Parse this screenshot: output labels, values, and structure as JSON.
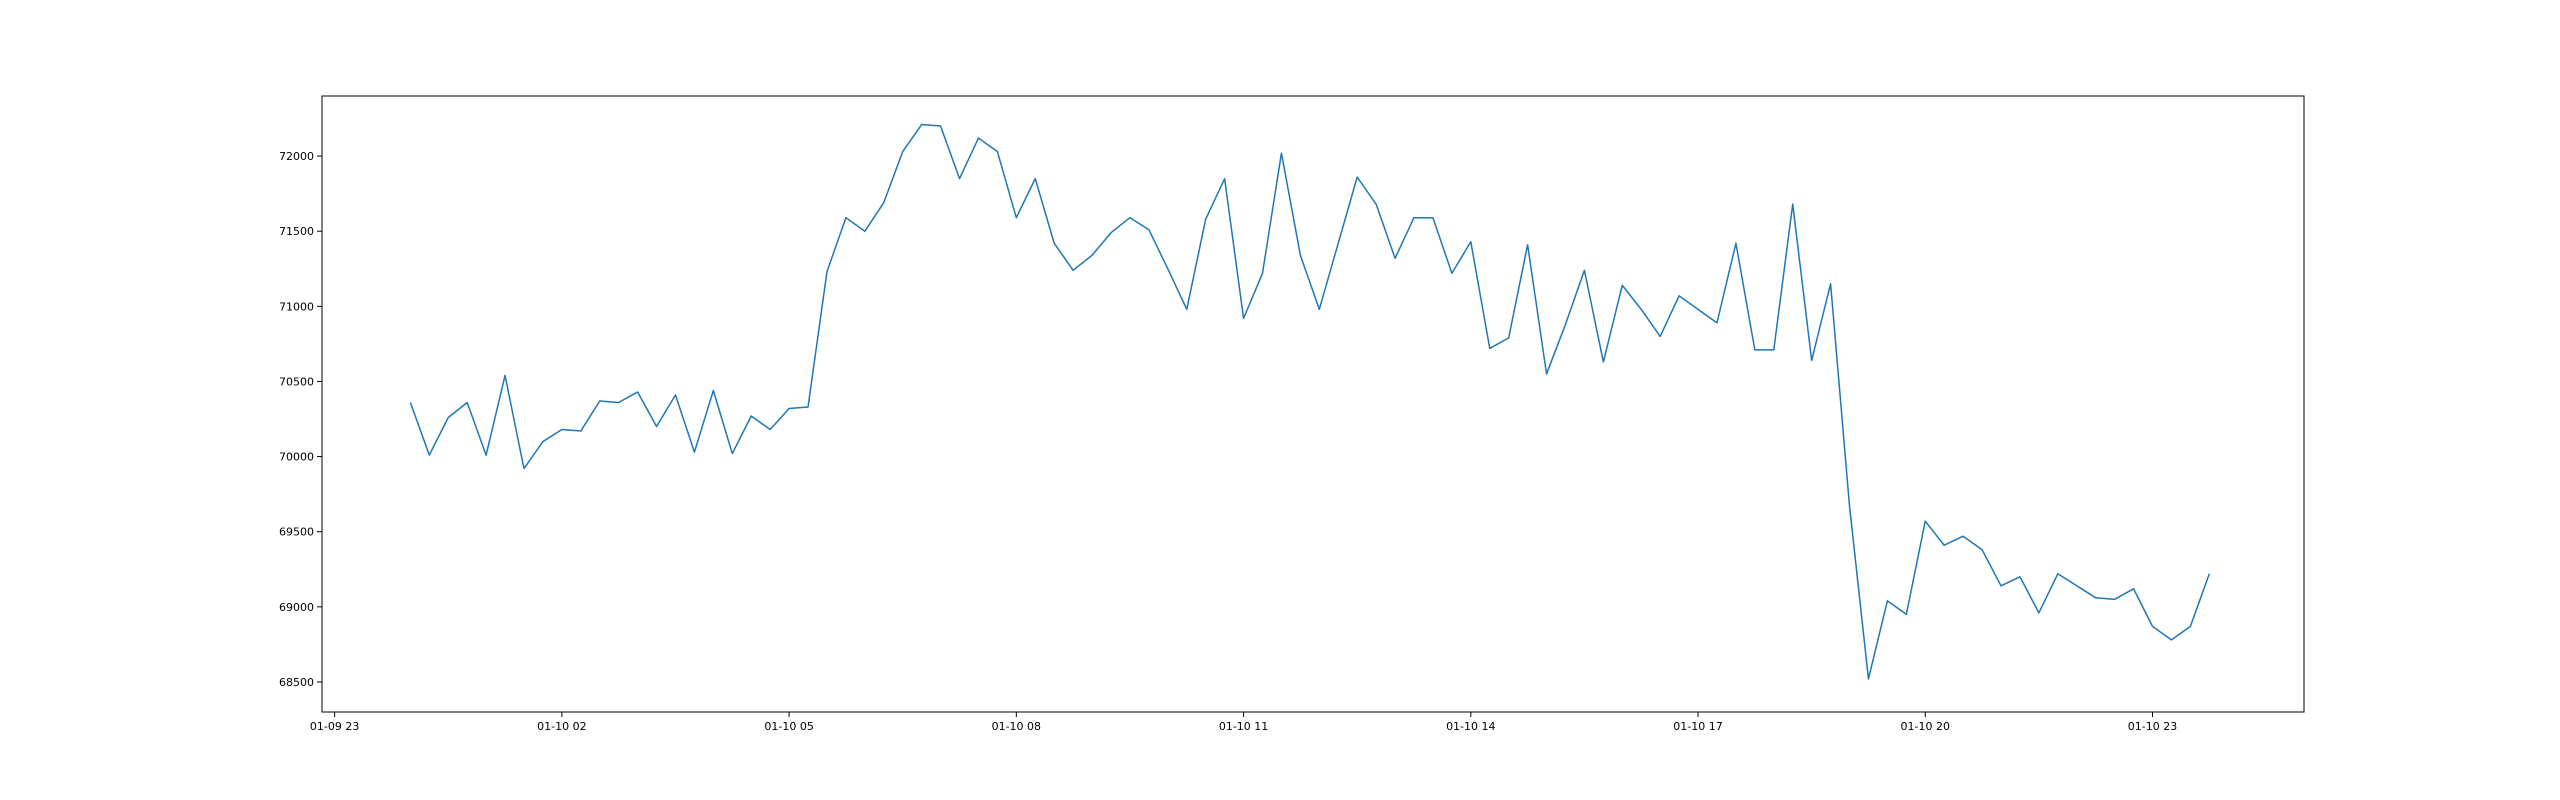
{
  "chart_data": {
    "type": "line",
    "title": "",
    "xlabel": "",
    "ylabel": "",
    "x_ticks": [
      "01-09 23",
      "01-10 02",
      "01-10 05",
      "01-10 08",
      "01-10 11",
      "01-10 14",
      "01-10 17",
      "01-10 20",
      "01-10 23"
    ],
    "y_ticks": [
      "68500",
      "69000",
      "69500",
      "70000",
      "70500",
      "71000",
      "71500",
      "72000"
    ],
    "x_range": [
      "2024-01-09 22:50",
      "2024-01-11 01:00"
    ],
    "ylim": [
      68300,
      72400
    ],
    "grid": false,
    "legend": "none",
    "colors": {
      "line": "#1f77b4",
      "axes": "#000000",
      "background": "#ffffff"
    },
    "series": [
      {
        "x": [
          "2024-01-10 00:00",
          "2024-01-10 00:15",
          "2024-01-10 00:30",
          "2024-01-10 00:45",
          "2024-01-10 01:00",
          "2024-01-10 01:15",
          "2024-01-10 01:30",
          "2024-01-10 01:45",
          "2024-01-10 02:00",
          "2024-01-10 02:15",
          "2024-01-10 02:30",
          "2024-01-10 02:45",
          "2024-01-10 03:00",
          "2024-01-10 03:15",
          "2024-01-10 03:30",
          "2024-01-10 03:45",
          "2024-01-10 04:00",
          "2024-01-10 04:15",
          "2024-01-10 04:30",
          "2024-01-10 04:45",
          "2024-01-10 05:00",
          "2024-01-10 05:15",
          "2024-01-10 05:30",
          "2024-01-10 05:45",
          "2024-01-10 06:00",
          "2024-01-10 06:15",
          "2024-01-10 06:30",
          "2024-01-10 06:45",
          "2024-01-10 07:00",
          "2024-01-10 07:15",
          "2024-01-10 07:30",
          "2024-01-10 07:45",
          "2024-01-10 08:00",
          "2024-01-10 08:15",
          "2024-01-10 08:30",
          "2024-01-10 08:45",
          "2024-01-10 09:00",
          "2024-01-10 09:15",
          "2024-01-10 09:30",
          "2024-01-10 09:45",
          "2024-01-10 10:00",
          "2024-01-10 10:15",
          "2024-01-10 10:30",
          "2024-01-10 10:45",
          "2024-01-10 11:00",
          "2024-01-10 11:15",
          "2024-01-10 11:30",
          "2024-01-10 11:45",
          "2024-01-10 12:00",
          "2024-01-10 12:15",
          "2024-01-10 12:30",
          "2024-01-10 12:45",
          "2024-01-10 13:00",
          "2024-01-10 13:15",
          "2024-01-10 13:30",
          "2024-01-10 13:45",
          "2024-01-10 14:00",
          "2024-01-10 14:15",
          "2024-01-10 14:30",
          "2024-01-10 14:45",
          "2024-01-10 15:00",
          "2024-01-10 15:15",
          "2024-01-10 15:30",
          "2024-01-10 15:45",
          "2024-01-10 16:00",
          "2024-01-10 16:15",
          "2024-01-10 16:30",
          "2024-01-10 16:45",
          "2024-01-10 17:00",
          "2024-01-10 17:15",
          "2024-01-10 17:30",
          "2024-01-10 17:45",
          "2024-01-10 18:00",
          "2024-01-10 18:15",
          "2024-01-10 18:30",
          "2024-01-10 18:45",
          "2024-01-10 19:00",
          "2024-01-10 19:15",
          "2024-01-10 19:30",
          "2024-01-10 19:45",
          "2024-01-10 20:00",
          "2024-01-10 20:15",
          "2024-01-10 20:30",
          "2024-01-10 20:45",
          "2024-01-10 21:00",
          "2024-01-10 21:15",
          "2024-01-10 21:30",
          "2024-01-10 21:45",
          "2024-01-10 22:00",
          "2024-01-10 22:15",
          "2024-01-10 22:30",
          "2024-01-10 22:45",
          "2024-01-10 23:00",
          "2024-01-10 23:15",
          "2024-01-10 23:30",
          "2024-01-10 23:45"
        ],
        "values": [
          70360,
          70010,
          70260,
          70360,
          70010,
          70540,
          69920,
          70100,
          70180,
          70170,
          70370,
          70360,
          70430,
          70200,
          70410,
          70030,
          70440,
          70020,
          70270,
          70180,
          70320,
          70330,
          71230,
          71590,
          71500,
          71690,
          72030,
          72210,
          72200,
          71850,
          72120,
          72030,
          71590,
          71850,
          71420,
          71240,
          71340,
          71490,
          71590,
          71510,
          71250,
          70980,
          71580,
          71850,
          70920,
          71220,
          72020,
          71340,
          70980,
          71420,
          71860,
          71680,
          71320,
          71590,
          71590,
          71220,
          71430,
          70720,
          70790,
          71410,
          70550,
          70880,
          71240,
          70630,
          71140,
          70980,
          70800,
          71070,
          70980,
          70890,
          71420,
          70710,
          70710,
          71680,
          70640,
          71150,
          69670,
          68520,
          69040,
          68950,
          69570,
          69410,
          69470,
          69380,
          69140,
          69200,
          68960,
          69220,
          69140,
          69060,
          69050,
          69120,
          68870,
          68780,
          68870,
          69220
        ]
      }
    ]
  }
}
